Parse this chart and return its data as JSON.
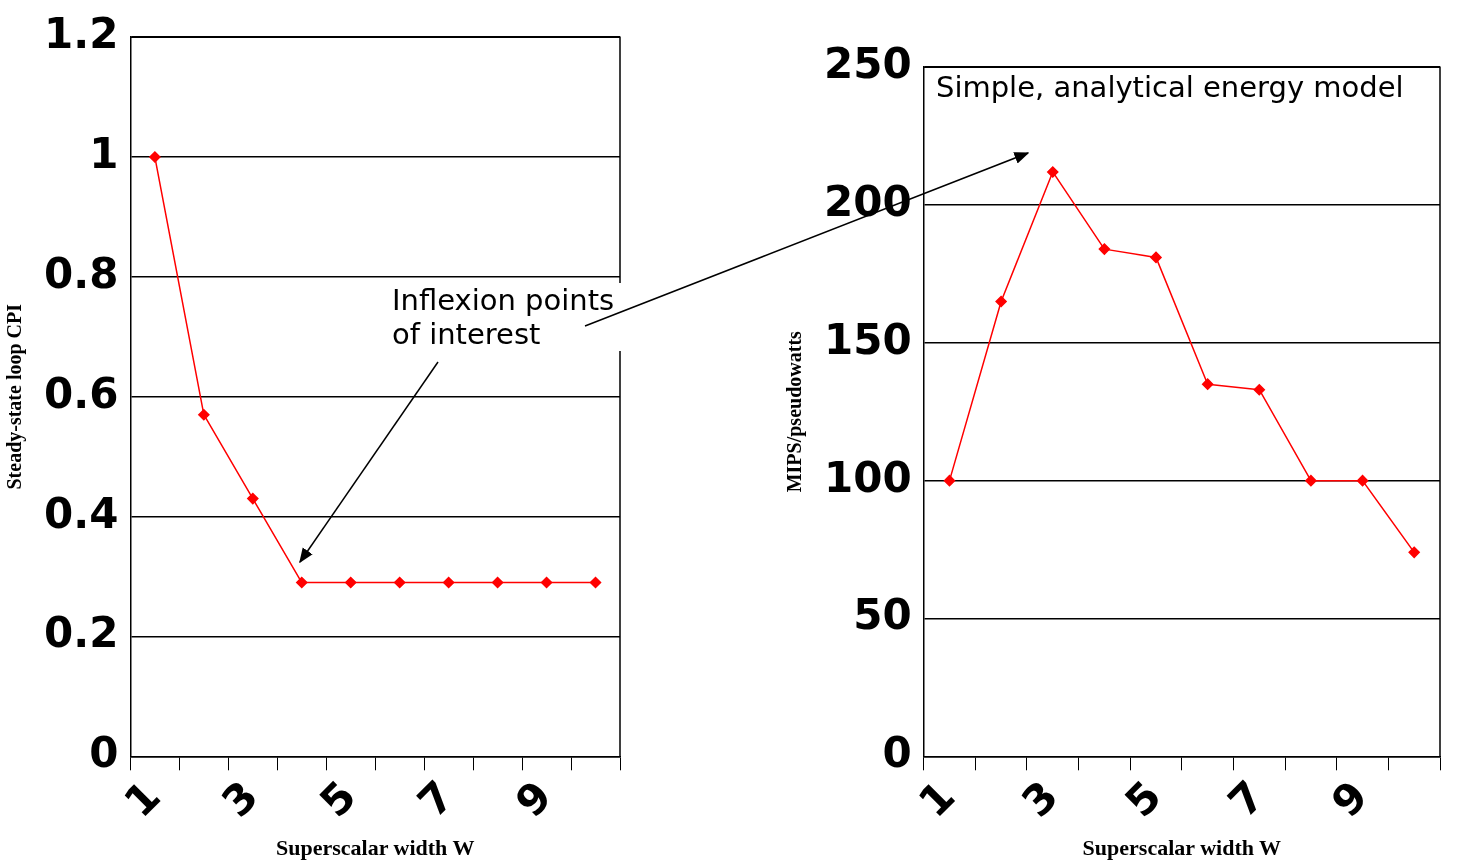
{
  "chart_data": [
    {
      "type": "line",
      "xlabel": "Superscalar width W",
      "ylabel": "Steady-state loop CPI",
      "categories": [
        "1",
        null,
        "3",
        null,
        "5",
        null,
        "7",
        null,
        "9",
        null
      ],
      "series": [
        {
          "color": "#ff0000",
          "values": [
            1,
            0.57,
            0.43,
            0.29,
            0.29,
            0.29,
            0.29,
            0.29,
            0.29,
            0.29
          ]
        }
      ],
      "ylim": [
        0,
        1.2
      ],
      "yticks": [
        0,
        0.2,
        0.4,
        0.6,
        0.8,
        1,
        1.2
      ],
      "grid": "y",
      "legend": false,
      "marker": "diamond",
      "line_style": "solid",
      "annotations": [
        "Inflexion points of interest"
      ]
    },
    {
      "type": "line",
      "xlabel": "Superscalar width W",
      "ylabel": "MIPS/pseudowatts",
      "categories": [
        "1",
        null,
        "3",
        null,
        "5",
        null,
        "7",
        null,
        "9",
        null
      ],
      "series": [
        {
          "color": "#ff0000",
          "values": [
            100,
            165,
            212,
            184,
            181,
            135,
            133,
            100,
            100,
            74
          ]
        }
      ],
      "ylim": [
        0,
        250
      ],
      "yticks": [
        0,
        50,
        100,
        150,
        200,
        250
      ],
      "grid": "y",
      "legend": false,
      "marker": "diamond",
      "line_style": "solid",
      "annotations": [
        "Simple, analytical energy model"
      ]
    }
  ]
}
